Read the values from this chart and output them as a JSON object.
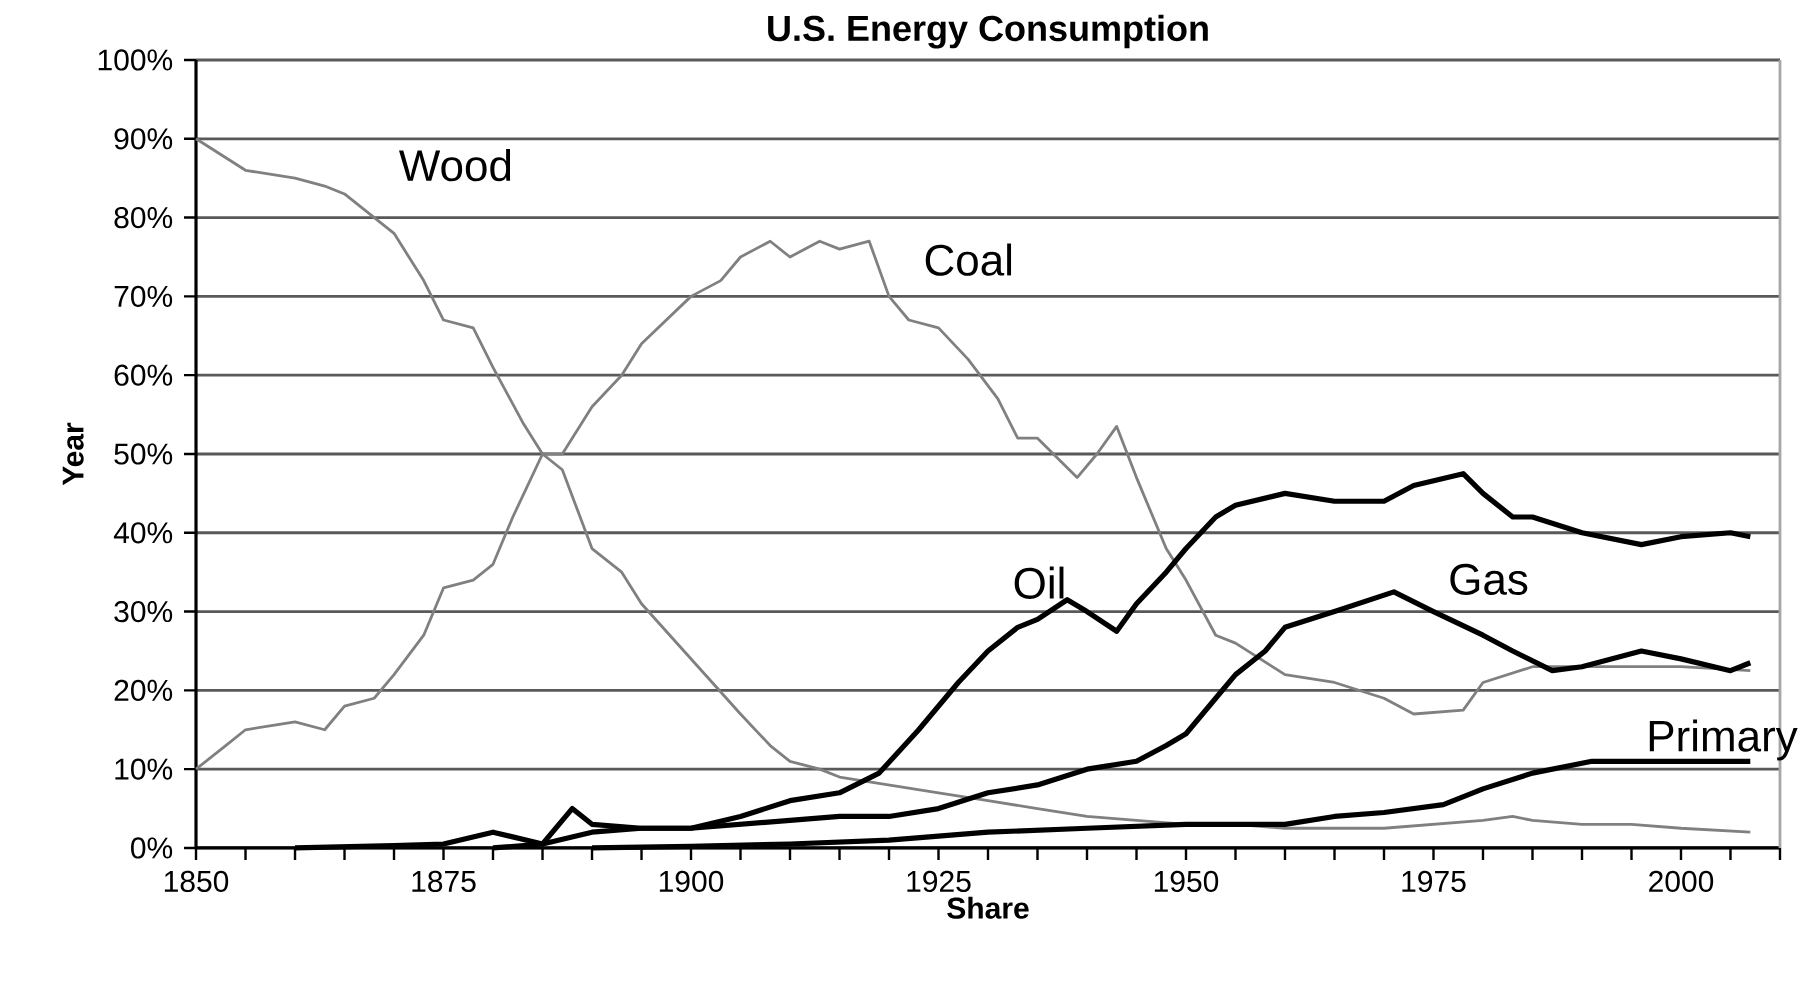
{
  "chart_data": {
    "type": "line",
    "title": "U.S. Energy Consumption",
    "xlabel": "Share",
    "ylabel": "Year",
    "xlim": [
      1850,
      2010
    ],
    "xticks": [
      {
        "value": 1850,
        "label": "1850"
      },
      {
        "value": 1855,
        "label": null
      },
      {
        "value": 1860,
        "label": null
      },
      {
        "value": 1865,
        "label": null
      },
      {
        "value": 1870,
        "label": null
      },
      {
        "value": 1875,
        "label": "1875"
      },
      {
        "value": 1880,
        "label": null
      },
      {
        "value": 1885,
        "label": null
      },
      {
        "value": 1890,
        "label": null
      },
      {
        "value": 1895,
        "label": null
      },
      {
        "value": 1900,
        "label": "1900"
      },
      {
        "value": 1905,
        "label": null
      },
      {
        "value": 1910,
        "label": null
      },
      {
        "value": 1915,
        "label": null
      },
      {
        "value": 1920,
        "label": null
      },
      {
        "value": 1925,
        "label": "1925"
      },
      {
        "value": 1930,
        "label": null
      },
      {
        "value": 1935,
        "label": null
      },
      {
        "value": 1940,
        "label": null
      },
      {
        "value": 1945,
        "label": null
      },
      {
        "value": 1950,
        "label": "1950"
      },
      {
        "value": 1955,
        "label": null
      },
      {
        "value": 1960,
        "label": null
      },
      {
        "value": 1965,
        "label": null
      },
      {
        "value": 1970,
        "label": null
      },
      {
        "value": 1975,
        "label": "1975"
      },
      {
        "value": 1980,
        "label": null
      },
      {
        "value": 1985,
        "label": null
      },
      {
        "value": 1990,
        "label": null
      },
      {
        "value": 1995,
        "label": null
      },
      {
        "value": 2000,
        "label": "2000"
      },
      {
        "value": 2005,
        "label": null
      },
      {
        "value": 2010,
        "label": null
      }
    ],
    "ylim": [
      0,
      100
    ],
    "yticks": [
      {
        "value": 0,
        "label": "0%"
      },
      {
        "value": 10,
        "label": "10%"
      },
      {
        "value": 20,
        "label": "20%"
      },
      {
        "value": 30,
        "label": "30%"
      },
      {
        "value": 40,
        "label": "40%"
      },
      {
        "value": 50,
        "label": "50%"
      },
      {
        "value": 60,
        "label": "60%"
      },
      {
        "value": 70,
        "label": "70%"
      },
      {
        "value": 80,
        "label": "80%"
      },
      {
        "value": 90,
        "label": "90%"
      },
      {
        "value": 100,
        "label": "100%"
      }
    ],
    "grid": "y",
    "marker": "none",
    "line_style": "solid",
    "series": [
      {
        "name": "Wood",
        "color": "#808080",
        "x": [
          1850,
          1855,
          1860,
          1863,
          1865,
          1870,
          1873,
          1875,
          1878,
          1880,
          1883,
          1885,
          1887,
          1890,
          1893,
          1895,
          1900,
          1905,
          1908,
          1910,
          1913,
          1915,
          1920,
          1925,
          1930,
          1935,
          1940,
          1945,
          1950,
          1955,
          1960,
          1965,
          1970,
          1975,
          1980,
          1983,
          1985,
          1990,
          1995,
          2000,
          2007
        ],
        "values": [
          90,
          86,
          85,
          84,
          83,
          78,
          72,
          67,
          66,
          61,
          54,
          50,
          48,
          38,
          35,
          31,
          24,
          17,
          13,
          11,
          10,
          9,
          8,
          7,
          6,
          5,
          4,
          3.5,
          3,
          3,
          2.5,
          2.5,
          2.5,
          3,
          3.5,
          4,
          3.5,
          3,
          3,
          2.5,
          2
        ]
      },
      {
        "name": "Coal",
        "color": "#808080",
        "x": [
          1850,
          1853,
          1855,
          1860,
          1863,
          1865,
          1868,
          1870,
          1873,
          1875,
          1878,
          1880,
          1882,
          1885,
          1887,
          1890,
          1893,
          1895,
          1900,
          1903,
          1905,
          1908,
          1910,
          1913,
          1915,
          1918,
          1920,
          1922,
          1925,
          1928,
          1931,
          1933,
          1935,
          1939,
          1941,
          1943,
          1945,
          1948,
          1950,
          1953,
          1955,
          1960,
          1965,
          1970,
          1973,
          1978,
          1980,
          1985,
          1990,
          1995,
          2000,
          2007
        ],
        "values": [
          10,
          13,
          15,
          16,
          15,
          18,
          19,
          22,
          27,
          33,
          34,
          36,
          42,
          50,
          50,
          56,
          60,
          64,
          70,
          72,
          75,
          77,
          75,
          77,
          76,
          77,
          70,
          67,
          66,
          62,
          57,
          52,
          52,
          47,
          50,
          53.5,
          47,
          38,
          34,
          27,
          26,
          22,
          21,
          19,
          17,
          17.5,
          21,
          23,
          23,
          23,
          23,
          22.5
        ]
      },
      {
        "name": "Oil",
        "color": "#000000",
        "x": [
          1860,
          1870,
          1875,
          1880,
          1885,
          1890,
          1895,
          1900,
          1905,
          1910,
          1915,
          1919,
          1923,
          1927,
          1930,
          1933,
          1935,
          1938,
          1940,
          1943,
          1945,
          1948,
          1950,
          1953,
          1955,
          1960,
          1965,
          1970,
          1973,
          1978,
          1980,
          1983,
          1985,
          1990,
          1996,
          2000,
          2005,
          2007
        ],
        "values": [
          0,
          0.3,
          0.5,
          2,
          0.5,
          2,
          2.5,
          2.5,
          4,
          6,
          7,
          9.5,
          15,
          21,
          25,
          28,
          29,
          31.5,
          30,
          27.5,
          31,
          35,
          38,
          42,
          43.5,
          45,
          44,
          44,
          46,
          47.5,
          45,
          42,
          42,
          40,
          38.5,
          39.5,
          40,
          39.5
        ]
      },
      {
        "name": "Gas",
        "color": "#000000",
        "x": [
          1880,
          1885,
          1888,
          1890,
          1895,
          1900,
          1905,
          1910,
          1915,
          1920,
          1925,
          1930,
          1935,
          1940,
          1945,
          1948,
          1950,
          1953,
          1955,
          1958,
          1960,
          1965,
          1971,
          1975,
          1980,
          1983,
          1987,
          1990,
          1996,
          2000,
          2005,
          2007
        ],
        "values": [
          0,
          0.5,
          5,
          3,
          2.5,
          2.5,
          3,
          3.5,
          4,
          4,
          5,
          7,
          8,
          10,
          11,
          13,
          14.5,
          19,
          22,
          25,
          28,
          30,
          32.5,
          30,
          27,
          25,
          22.5,
          23,
          25,
          24,
          22.5,
          23.5
        ]
      },
      {
        "name": "Primary",
        "color": "#000000",
        "x": [
          1890,
          1900,
          1910,
          1920,
          1930,
          1940,
          1950,
          1960,
          1965,
          1970,
          1976,
          1980,
          1985,
          1991,
          1995,
          2000,
          2007
        ],
        "values": [
          0,
          0.2,
          0.5,
          1,
          2,
          2.5,
          3,
          3,
          4,
          4.5,
          5.5,
          7.5,
          9.5,
          11,
          11,
          11,
          11
        ]
      }
    ]
  }
}
